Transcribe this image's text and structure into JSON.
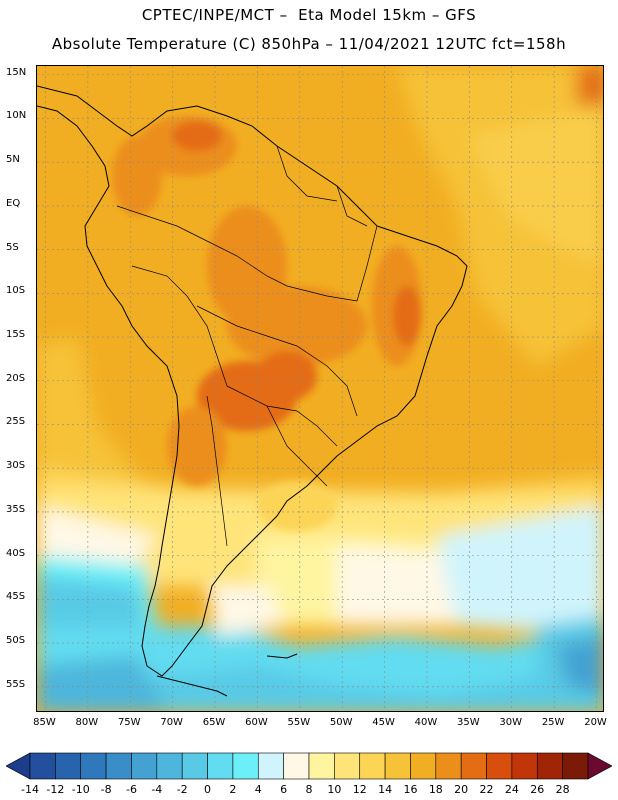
{
  "header": {
    "line1": "CPTEC/INPE/MCT –  Eta Model 15km – GFS",
    "line2": "Absolute Temperature (C) 850hPa – 11/04/2021 12UTC fct=158h"
  },
  "map": {
    "lat_labels": [
      "15N",
      "10N",
      "5N",
      "EQ",
      "5S",
      "10S",
      "15S",
      "20S",
      "25S",
      "30S",
      "35S",
      "40S",
      "45S",
      "50S",
      "55S"
    ],
    "lon_labels": [
      "85W",
      "80W",
      "75W",
      "70W",
      "65W",
      "60W",
      "55W",
      "50W",
      "45W",
      "40W",
      "35W",
      "30W",
      "25W",
      "20W"
    ],
    "lat_range": [
      16,
      -58
    ],
    "lon_range": [
      -86,
      -19
    ]
  },
  "colorbar": {
    "labels": [
      "-14",
      "-12",
      "-10",
      "-8",
      "-6",
      "-4",
      "-2",
      "0",
      "2",
      "4",
      "6",
      "8",
      "10",
      "12",
      "14",
      "16",
      "18",
      "20",
      "22",
      "24",
      "26",
      "28"
    ],
    "colors": [
      "#1e3c8c",
      "#22509e",
      "#2864ae",
      "#3078bc",
      "#3a8ec8",
      "#44a2d2",
      "#4eb6dc",
      "#58cae6",
      "#62dcf0",
      "#6cf0f8",
      "#d0f4fc",
      "#fff8e6",
      "#fff4a0",
      "#ffe47a",
      "#fcd456",
      "#f6c238",
      "#f2ae22",
      "#ec8e1a",
      "#e46c12",
      "#d84e0c",
      "#c03608",
      "#a02406",
      "#7c1a08",
      "#6a0a30"
    ]
  }
}
